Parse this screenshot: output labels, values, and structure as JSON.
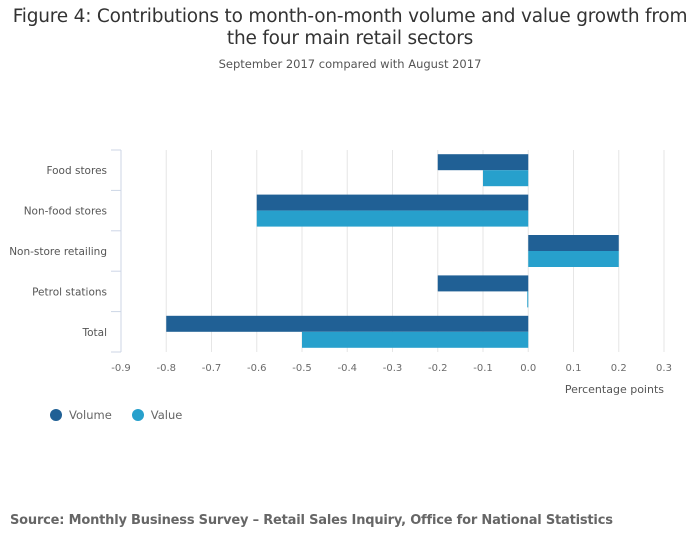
{
  "chart_data": {
    "type": "bar",
    "orientation": "horizontal",
    "title": "Figure 4: Contributions to month-on-month volume and value growth from the four main retail sectors",
    "title_lines": [
      "Figure 4: Contributions to month-on-month volume and value growth from",
      "the four main retail sectors"
    ],
    "subtitle": "September 2017 compared with August 2017",
    "categories": [
      "Food stores",
      "Non-food stores",
      "Non-store retailing",
      "Petrol stations",
      "Total"
    ],
    "series": [
      {
        "name": "Volume",
        "color": "#206095",
        "values": [
          -0.2,
          -0.6,
          0.2,
          -0.2,
          -0.8
        ]
      },
      {
        "name": "Value",
        "color": "#27a0cc",
        "values": [
          -0.1,
          -0.6,
          0.2,
          0.0,
          -0.5
        ]
      }
    ],
    "xlabel": "Percentage points",
    "ylabel": "",
    "xlim": [
      -0.9,
      0.3
    ],
    "xticks": [
      "-0.9",
      "-0.8",
      "-0.7",
      "-0.6",
      "-0.5",
      "-0.4",
      "-0.3",
      "-0.2",
      "-0.1",
      "0.0",
      "0.1",
      "0.2",
      "0.3"
    ],
    "grid": true,
    "legend_position": "bottom-left"
  },
  "source": "Source: Monthly Business Survey – Retail Sales Inquiry, Office for National Statistics"
}
